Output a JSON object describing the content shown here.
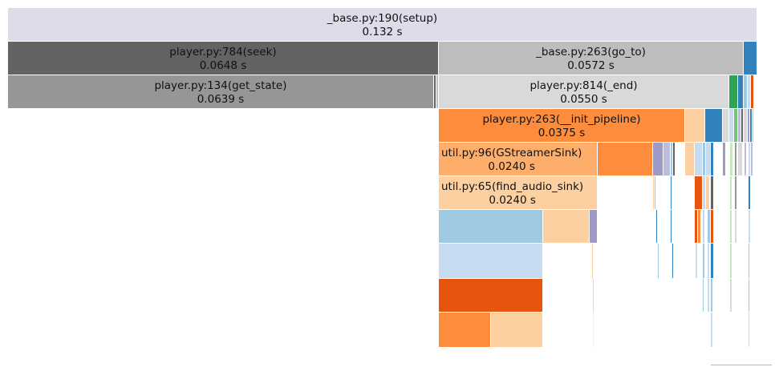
{
  "colors": {
    "lavender": "#dcdcea",
    "dark_gray": "#636363",
    "mid_gray": "#969696",
    "light_gray": "#bdbdbd",
    "lighter_gray": "#d9d9d9",
    "orange": "#fd8d3c",
    "dark_orange": "#e6550d",
    "peach": "#fdd0a2",
    "sky_blue": "#9ecae1",
    "pale_blue": "#c6dbef",
    "blue": "#3182bd",
    "purple": "#9e9ac8",
    "green": "#31a354",
    "light_green": "#74c476",
    "pale_green": "#c7e9c0",
    "lilac": "#bcbddc"
  },
  "frames": {
    "setup": {
      "name": "_base.py:190(setup)",
      "time": "0.132 s"
    },
    "seek": {
      "name": "player.py:784(seek)",
      "time": "0.0648 s"
    },
    "go_to": {
      "name": "_base.py:263(go_to)",
      "time": "0.0572 s"
    },
    "get_state": {
      "name": "player.py:134(get_state)",
      "time": "0.0639 s"
    },
    "end": {
      "name": "player.py:814(_end)",
      "time": "0.0550 s"
    },
    "init_pipeline": {
      "name": "player.py:263(__init_pipeline)",
      "time": "0.0375 s"
    },
    "gstreamer_sink": {
      "name": "util.py:96(GStreamerSink)",
      "time": "0.0240 s"
    },
    "find_audio_sink": {
      "name": "util.py:65(find_audio_sink)",
      "time": "0.0240 s"
    }
  }
}
